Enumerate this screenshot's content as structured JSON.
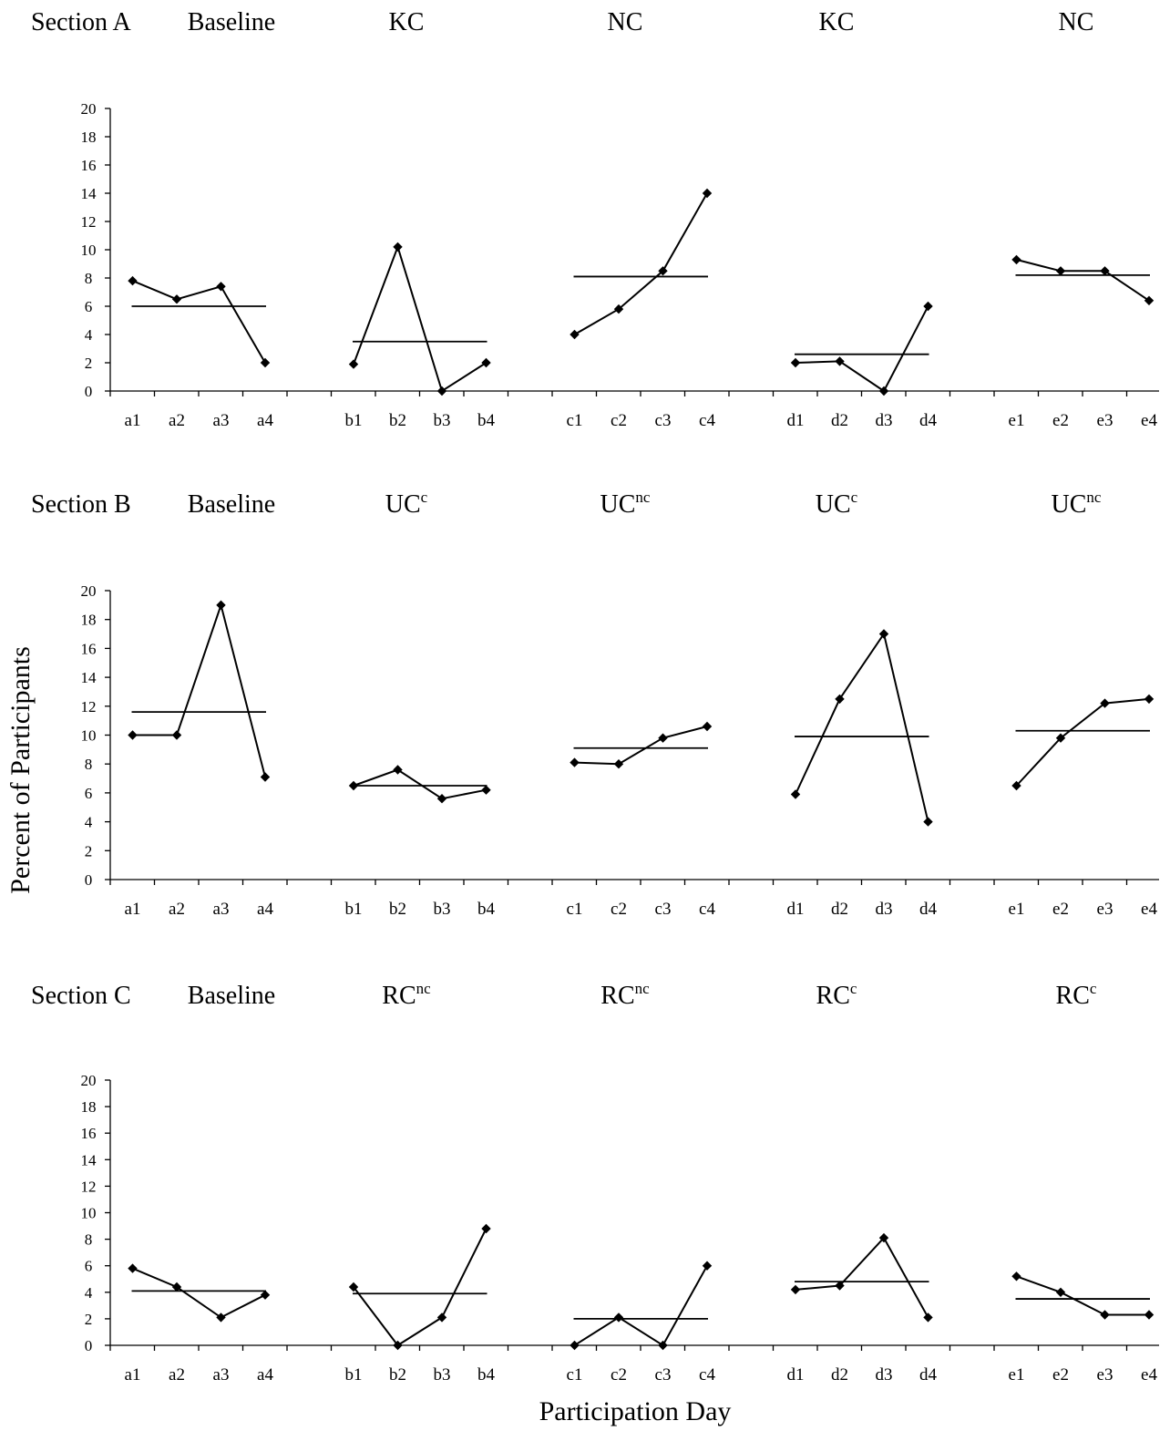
{
  "chart_data": [
    {
      "type": "line",
      "section_label": "Section A",
      "phases": [
        {
          "label": "Baseline",
          "sup": ""
        },
        {
          "label": "KC",
          "sup": ""
        },
        {
          "label": "NC",
          "sup": ""
        },
        {
          "label": "KC",
          "sup": ""
        },
        {
          "label": "NC",
          "sup": ""
        }
      ],
      "groups": [
        {
          "categories": [
            "a1",
            "a2",
            "a3",
            "a4"
          ],
          "values": [
            7.8,
            6.5,
            7.4,
            2.0
          ],
          "mean": 6.0
        },
        {
          "categories": [
            "b1",
            "b2",
            "b3",
            "b4"
          ],
          "values": [
            1.9,
            10.2,
            0.0,
            2.0
          ],
          "mean": 3.5
        },
        {
          "categories": [
            "c1",
            "c2",
            "c3",
            "c4"
          ],
          "values": [
            4.0,
            5.8,
            8.5,
            14.0
          ],
          "mean": 8.1
        },
        {
          "categories": [
            "d1",
            "d2",
            "d3",
            "d4"
          ],
          "values": [
            2.0,
            2.1,
            0.0,
            6.0
          ],
          "mean": 2.6
        },
        {
          "categories": [
            "e1",
            "e2",
            "e3",
            "e4"
          ],
          "values": [
            9.3,
            8.5,
            8.5,
            6.4
          ],
          "mean": 8.2
        }
      ],
      "ylim": [
        0,
        20
      ],
      "yticks": [
        0,
        2,
        4,
        6,
        8,
        10,
        12,
        14,
        16,
        18,
        20
      ]
    },
    {
      "type": "line",
      "section_label": "Section B",
      "phases": [
        {
          "label": "Baseline",
          "sup": ""
        },
        {
          "label": "UC",
          "sup": "c"
        },
        {
          "label": "UC",
          "sup": "nc"
        },
        {
          "label": "UC",
          "sup": "c"
        },
        {
          "label": "UC",
          "sup": "nc"
        }
      ],
      "groups": [
        {
          "categories": [
            "a1",
            "a2",
            "a3",
            "a4"
          ],
          "values": [
            10.0,
            10.0,
            19.0,
            7.1
          ],
          "mean": 11.6
        },
        {
          "categories": [
            "b1",
            "b2",
            "b3",
            "b4"
          ],
          "values": [
            6.5,
            7.6,
            5.6,
            6.2
          ],
          "mean": 6.5
        },
        {
          "categories": [
            "c1",
            "c2",
            "c3",
            "c4"
          ],
          "values": [
            8.1,
            8.0,
            9.8,
            10.6
          ],
          "mean": 9.1
        },
        {
          "categories": [
            "d1",
            "d2",
            "d3",
            "d4"
          ],
          "values": [
            5.9,
            12.5,
            17.0,
            4.0
          ],
          "mean": 9.9
        },
        {
          "categories": [
            "e1",
            "e2",
            "e3",
            "e4"
          ],
          "values": [
            6.5,
            9.8,
            12.2,
            12.5
          ],
          "mean": 10.3
        }
      ],
      "ylim": [
        0,
        20
      ],
      "yticks": [
        0,
        2,
        4,
        6,
        8,
        10,
        12,
        14,
        16,
        18,
        20
      ],
      "ylabel": "Percent of Participants"
    },
    {
      "type": "line",
      "section_label": "Section C",
      "phases": [
        {
          "label": "Baseline",
          "sup": ""
        },
        {
          "label": "RC",
          "sup": "nc"
        },
        {
          "label": "RC",
          "sup": "nc"
        },
        {
          "label": "RC",
          "sup": "c"
        },
        {
          "label": "RC",
          "sup": "c"
        }
      ],
      "groups": [
        {
          "categories": [
            "a1",
            "a2",
            "a3",
            "a4"
          ],
          "values": [
            5.8,
            4.4,
            2.1,
            3.8
          ],
          "mean": 4.1
        },
        {
          "categories": [
            "b1",
            "b2",
            "b3",
            "b4"
          ],
          "values": [
            4.4,
            0.0,
            2.1,
            8.8
          ],
          "mean": 3.9
        },
        {
          "categories": [
            "c1",
            "c2",
            "c3",
            "c4"
          ],
          "values": [
            0.0,
            2.1,
            0.0,
            6.0
          ],
          "mean": 2.0
        },
        {
          "categories": [
            "d1",
            "d2",
            "d3",
            "d4"
          ],
          "values": [
            4.2,
            4.5,
            8.1,
            2.1
          ],
          "mean": 4.8
        },
        {
          "categories": [
            "e1",
            "e2",
            "e3",
            "e4"
          ],
          "values": [
            5.2,
            4.0,
            2.3,
            2.3
          ],
          "mean": 3.5
        }
      ],
      "ylim": [
        0,
        20
      ],
      "yticks": [
        0,
        2,
        4,
        6,
        8,
        10,
        12,
        14,
        16,
        18,
        20
      ],
      "xlabel": "Participation Day"
    }
  ]
}
